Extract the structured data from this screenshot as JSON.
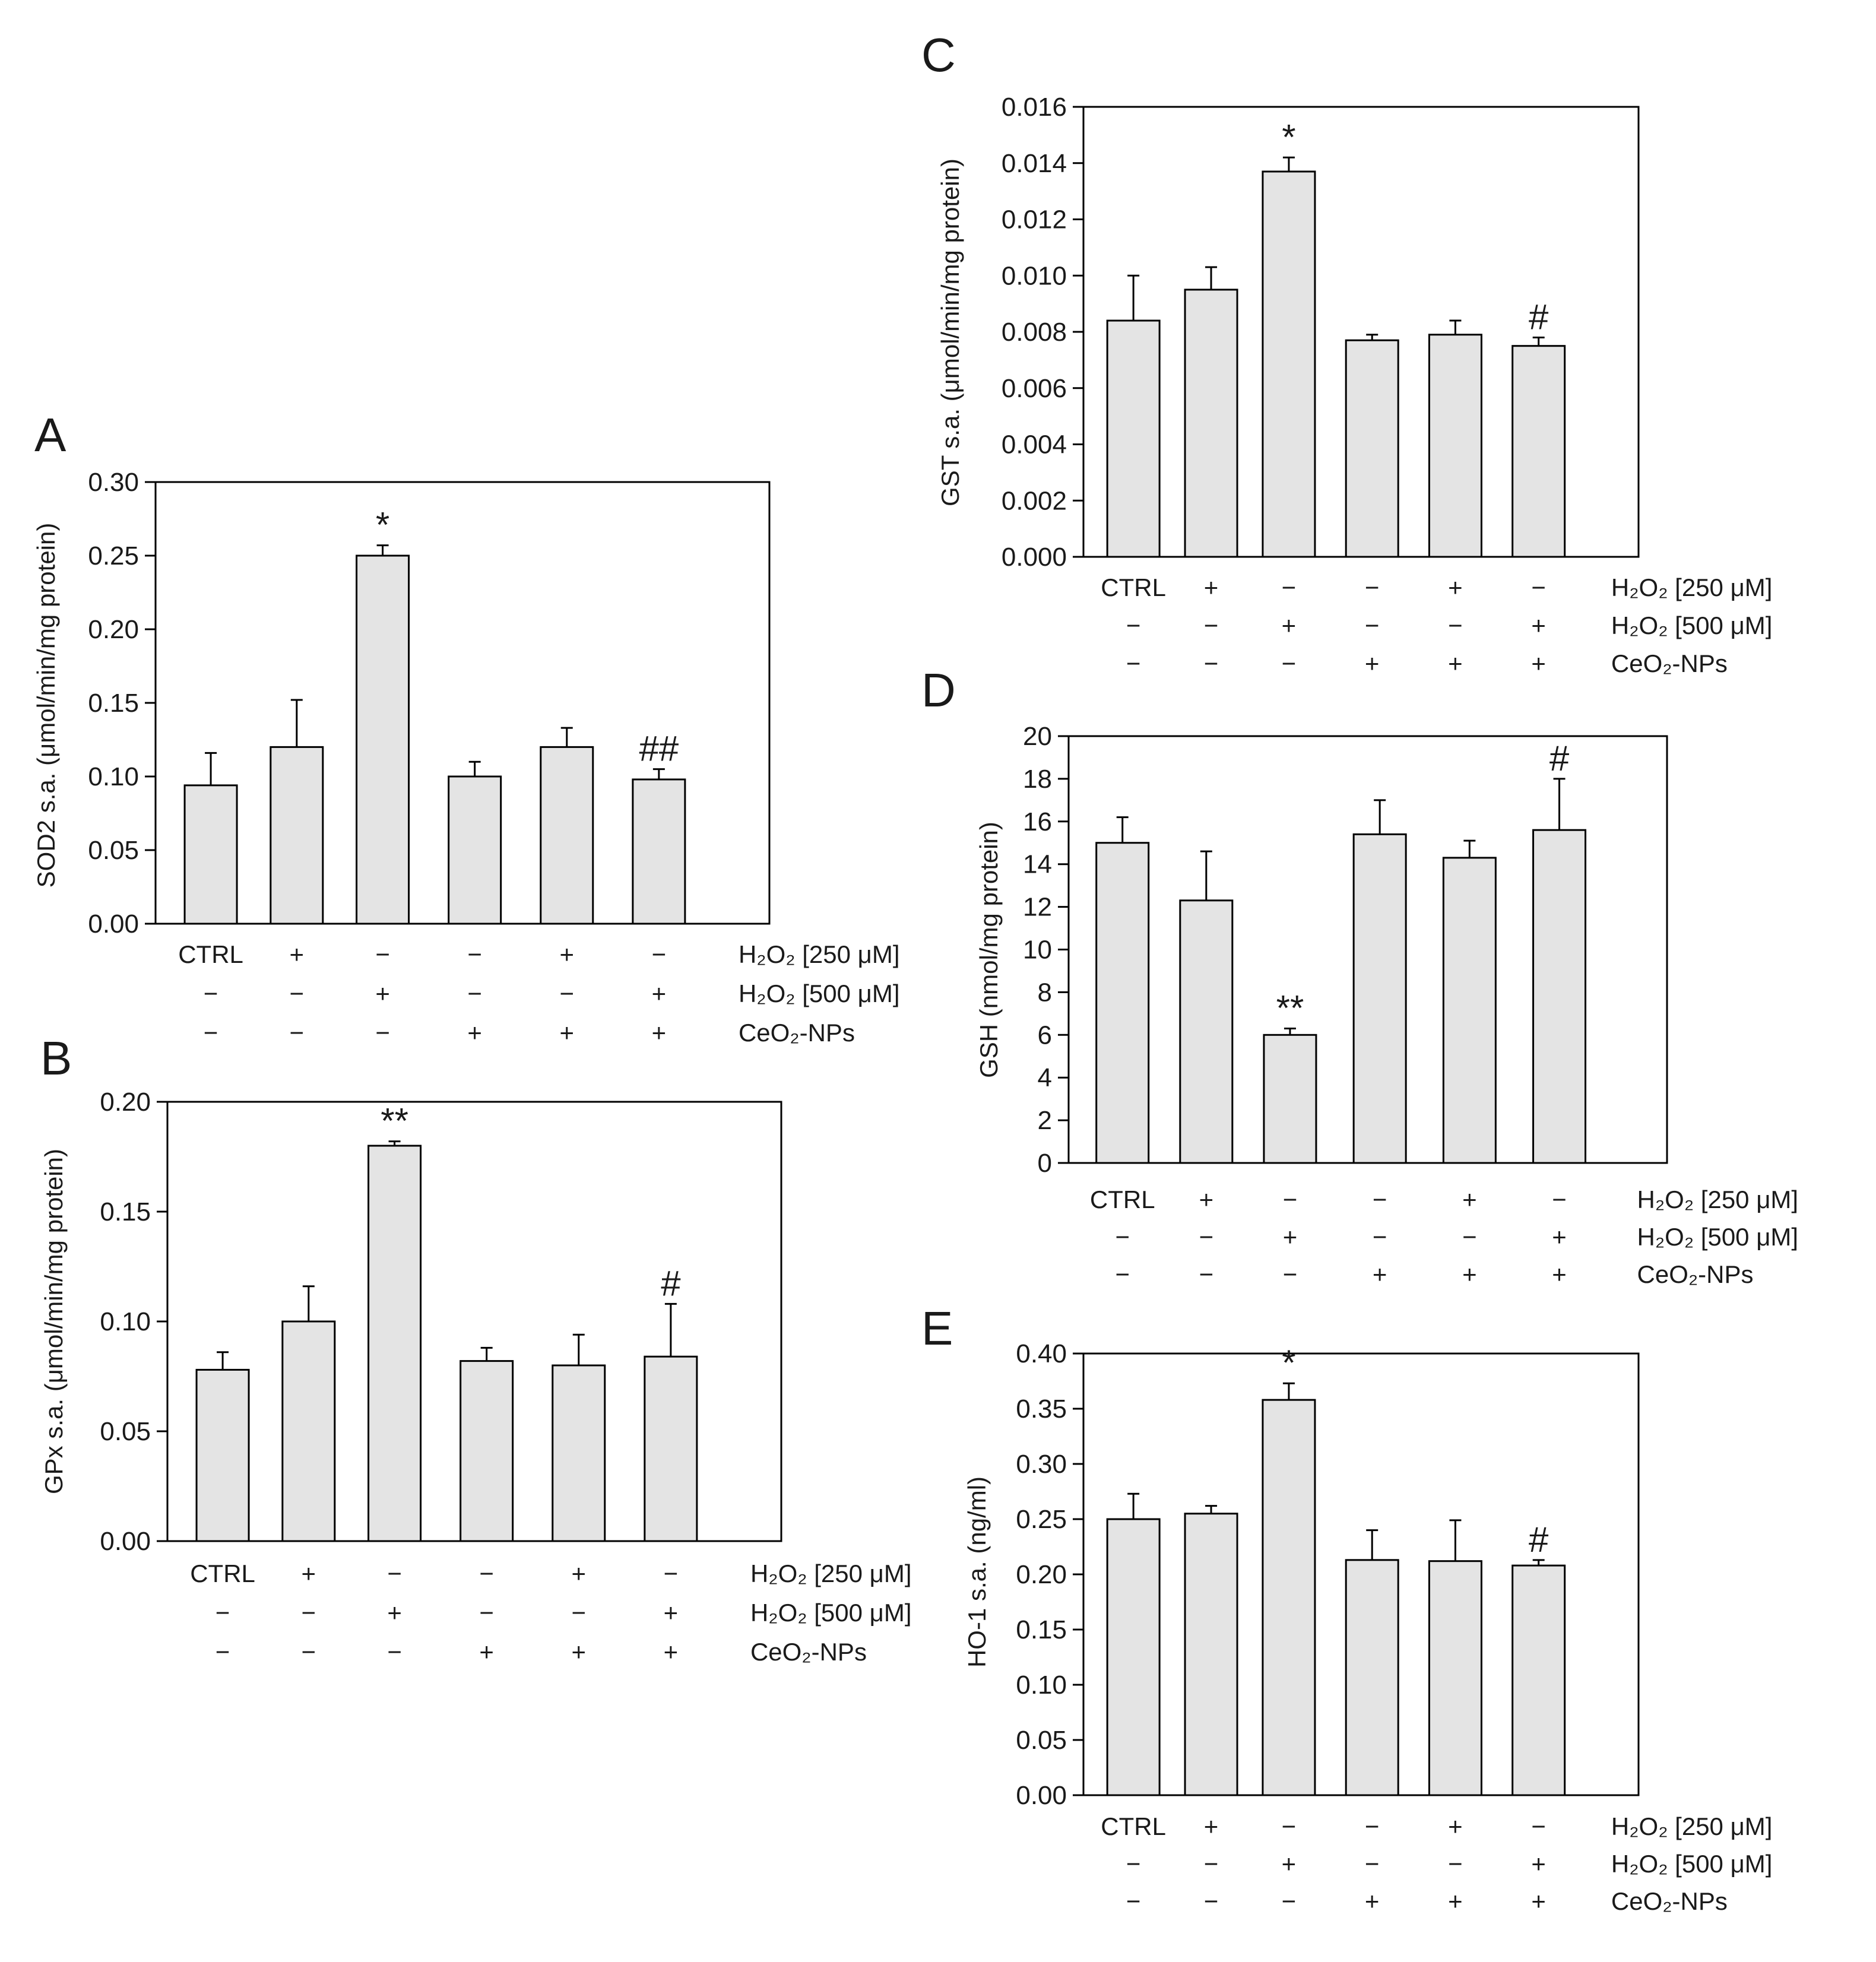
{
  "colors": {
    "bar_fill": "#e4e4e4",
    "bar_stroke": "#000000",
    "axis": "#000000",
    "text": "#1a1a1a"
  },
  "conditions": {
    "ctrl_label": "CTRL",
    "row_labels": [
      "H₂O₂ [250 μM]",
      "H₂O₂ [500 μM]",
      "CeO₂-NPs"
    ],
    "matrix": [
      [
        "+",
        "−",
        "−",
        "+",
        "−"
      ],
      [
        "−",
        "+",
        "−",
        "−",
        "+"
      ],
      [
        "−",
        "−",
        "+",
        "+",
        "+"
      ]
    ]
  },
  "chart_data": [
    {
      "panel": "A",
      "type": "bar",
      "ylabel": "SOD2 s.a. (μmol/min/mg protein)",
      "ylim": [
        0,
        0.3
      ],
      "yticks": [
        "0.00",
        "0.05",
        "0.10",
        "0.15",
        "0.20",
        "0.25",
        "0.30"
      ],
      "values": [
        0.094,
        0.12,
        0.25,
        0.1,
        0.12,
        0.098
      ],
      "errors": [
        0.022,
        0.032,
        0.007,
        0.01,
        0.013,
        0.007
      ],
      "significance": [
        "",
        "",
        "*",
        "",
        "",
        "##"
      ]
    },
    {
      "panel": "B",
      "type": "bar",
      "ylabel": "GPx s.a. (μmol/min/mg protein)",
      "ylim": [
        0,
        0.2
      ],
      "yticks": [
        "0.00",
        "0.05",
        "0.10",
        "0.15",
        "0.20"
      ],
      "values": [
        0.078,
        0.1,
        0.18,
        0.082,
        0.08,
        0.084
      ],
      "errors": [
        0.008,
        0.016,
        0.002,
        0.006,
        0.014,
        0.024
      ],
      "significance": [
        "",
        "",
        "**",
        "",
        "",
        "#"
      ]
    },
    {
      "panel": "C",
      "type": "bar",
      "ylabel": "GST s.a. (μmol/min/mg protein)",
      "ylim": [
        0,
        0.016
      ],
      "yticks": [
        "0.000",
        "0.002",
        "0.004",
        "0.006",
        "0.008",
        "0.010",
        "0.012",
        "0.014",
        "0.016"
      ],
      "values": [
        0.0084,
        0.0095,
        0.0137,
        0.0077,
        0.0079,
        0.0075
      ],
      "errors": [
        0.0016,
        0.0008,
        0.0005,
        0.0002,
        0.0005,
        0.0003
      ],
      "significance": [
        "",
        "",
        "*",
        "",
        "",
        "#"
      ]
    },
    {
      "panel": "D",
      "type": "bar",
      "ylabel": "GSH (nmol/mg protein)",
      "ylim": [
        0,
        20
      ],
      "yticks": [
        "0",
        "2",
        "4",
        "6",
        "8",
        "10",
        "12",
        "14",
        "16",
        "18",
        "20"
      ],
      "values": [
        15.0,
        12.3,
        6.0,
        15.4,
        14.3,
        15.6
      ],
      "errors": [
        1.2,
        2.3,
        0.3,
        1.6,
        0.8,
        2.4
      ],
      "significance": [
        "",
        "",
        "**",
        "",
        "",
        "#"
      ]
    },
    {
      "panel": "E",
      "type": "bar",
      "ylabel": "HO-1 s.a. (ng/ml)",
      "ylim": [
        0,
        0.4
      ],
      "yticks": [
        "0.00",
        "0.05",
        "0.10",
        "0.15",
        "0.20",
        "0.25",
        "0.30",
        "0.35",
        "0.40"
      ],
      "values": [
        0.25,
        0.255,
        0.358,
        0.213,
        0.212,
        0.208
      ],
      "errors": [
        0.023,
        0.007,
        0.015,
        0.027,
        0.037,
        0.005
      ],
      "significance": [
        "",
        "",
        "*",
        "",
        "",
        "#"
      ]
    }
  ]
}
